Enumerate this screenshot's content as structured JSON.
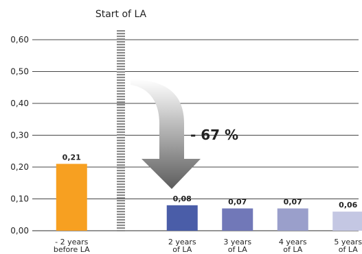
{
  "chart_data": {
    "type": "bar",
    "categories": [
      [
        "- 2 years",
        "before LA"
      ],
      [],
      [
        "2 years",
        "of LA"
      ],
      [
        "3 years",
        "of LA"
      ],
      [
        "4 years",
        "of LA"
      ],
      [
        "5 years",
        "of LA"
      ]
    ],
    "values": [
      0.21,
      null,
      0.08,
      0.07,
      0.07,
      0.06
    ],
    "data_labels": [
      "0,21",
      "",
      "0,08",
      "0,07",
      "0,07",
      "0,06"
    ],
    "bar_colors": [
      "#f7a021",
      "",
      "#4a5da8",
      "#7178b8",
      "#9a9fcb",
      "#c4c7e3"
    ],
    "ylim": [
      0,
      0.6
    ],
    "yticks": [
      0,
      0.1,
      0.2,
      0.3,
      0.4,
      0.5,
      0.6
    ],
    "ytick_labels": [
      "0,00",
      "0,10",
      "0,20",
      "0,30",
      "0,40",
      "0,50",
      "0,60"
    ],
    "grid": true,
    "annotations": {
      "marker_label": "Start of LA",
      "marker_position": "between category 1 and 3",
      "change_label": "- 67 %",
      "arrow_color": "#6b6b6b"
    }
  }
}
